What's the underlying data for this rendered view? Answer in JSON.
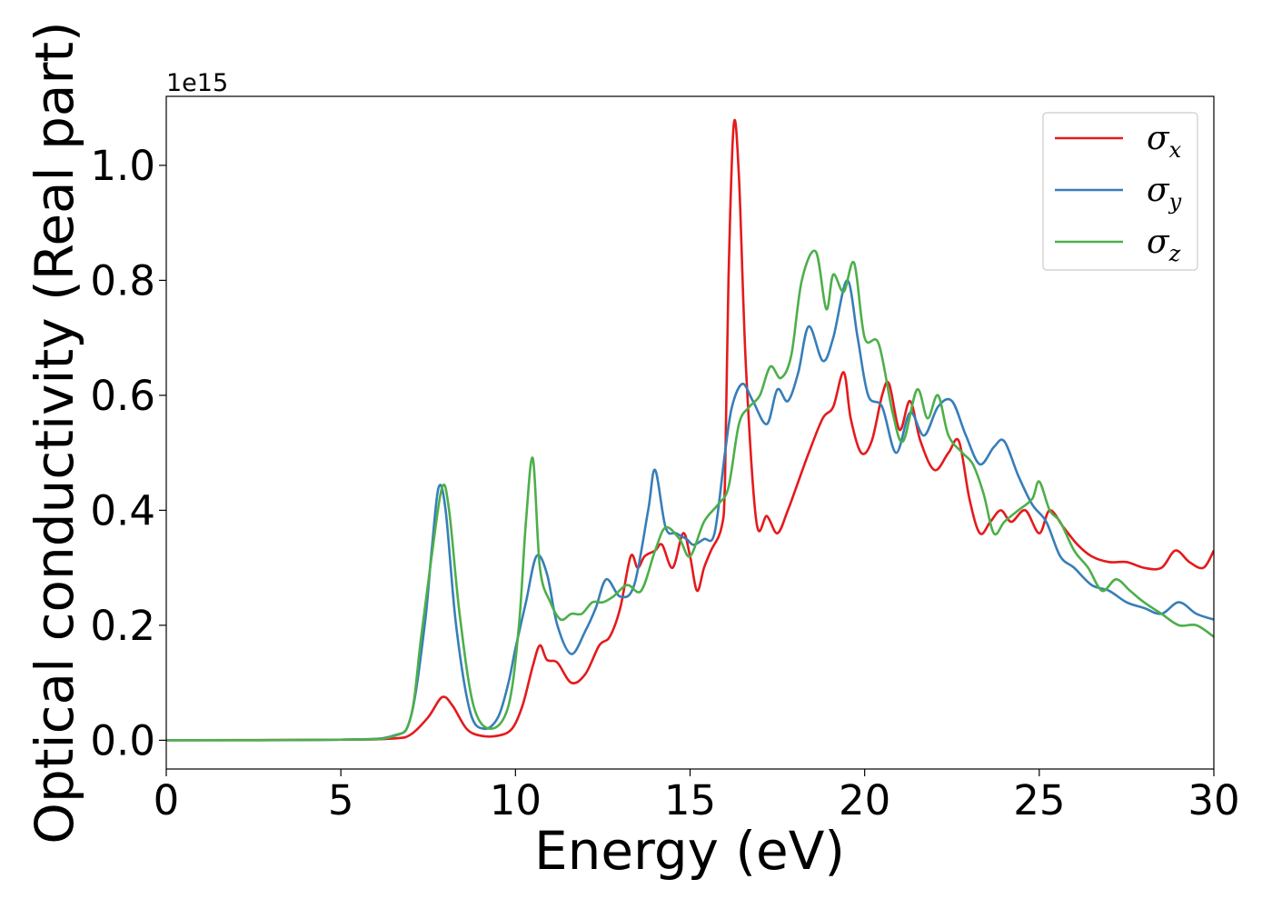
{
  "chart_data": {
    "type": "line",
    "xlabel": "Energy (eV)",
    "ylabel": "Optical conductivity (Real part)",
    "offset_text": "1e15",
    "xlim": [
      0,
      30
    ],
    "ylim": [
      -0.05,
      1.12
    ],
    "x_ticks": [
      0,
      5,
      10,
      15,
      20,
      25,
      30
    ],
    "x_tick_labels": [
      "0",
      "5",
      "10",
      "15",
      "20",
      "25",
      "30"
    ],
    "y_ticks": [
      0.0,
      0.2,
      0.4,
      0.6,
      0.8,
      1.0
    ],
    "y_tick_labels": [
      "0.0",
      "0.2",
      "0.4",
      "0.6",
      "0.8",
      "1.0"
    ],
    "grid": false,
    "legend_position": "upper-right",
    "series": [
      {
        "name": "σx",
        "legend_symbol": "σ",
        "legend_subscript": "x",
        "color": "#e41a1c",
        "points": [
          [
            0,
            0
          ],
          [
            5,
            0.001
          ],
          [
            6.5,
            0.003
          ],
          [
            7.0,
            0.01
          ],
          [
            7.5,
            0.04
          ],
          [
            7.9,
            0.075
          ],
          [
            8.2,
            0.06
          ],
          [
            8.6,
            0.02
          ],
          [
            9.0,
            0.008
          ],
          [
            9.5,
            0.008
          ],
          [
            9.9,
            0.02
          ],
          [
            10.2,
            0.06
          ],
          [
            10.5,
            0.13
          ],
          [
            10.7,
            0.165
          ],
          [
            10.9,
            0.14
          ],
          [
            11.2,
            0.135
          ],
          [
            11.6,
            0.1
          ],
          [
            12.0,
            0.115
          ],
          [
            12.4,
            0.165
          ],
          [
            12.7,
            0.18
          ],
          [
            13.0,
            0.23
          ],
          [
            13.3,
            0.32
          ],
          [
            13.5,
            0.3
          ],
          [
            13.7,
            0.32
          ],
          [
            14.0,
            0.33
          ],
          [
            14.2,
            0.34
          ],
          [
            14.5,
            0.3
          ],
          [
            14.8,
            0.36
          ],
          [
            15.0,
            0.32
          ],
          [
            15.2,
            0.26
          ],
          [
            15.4,
            0.3
          ],
          [
            15.6,
            0.33
          ],
          [
            15.9,
            0.37
          ],
          [
            16.0,
            0.45
          ],
          [
            16.1,
            0.8
          ],
          [
            16.25,
            1.07
          ],
          [
            16.4,
            0.98
          ],
          [
            16.6,
            0.65
          ],
          [
            16.9,
            0.38
          ],
          [
            17.2,
            0.39
          ],
          [
            17.5,
            0.36
          ],
          [
            17.8,
            0.4
          ],
          [
            18.1,
            0.45
          ],
          [
            18.4,
            0.5
          ],
          [
            18.8,
            0.56
          ],
          [
            19.1,
            0.58
          ],
          [
            19.4,
            0.64
          ],
          [
            19.6,
            0.56
          ],
          [
            19.9,
            0.5
          ],
          [
            20.2,
            0.52
          ],
          [
            20.5,
            0.6
          ],
          [
            20.7,
            0.62
          ],
          [
            21.0,
            0.54
          ],
          [
            21.3,
            0.59
          ],
          [
            21.6,
            0.52
          ],
          [
            22.0,
            0.47
          ],
          [
            22.4,
            0.5
          ],
          [
            22.7,
            0.52
          ],
          [
            23.0,
            0.42
          ],
          [
            23.3,
            0.36
          ],
          [
            23.6,
            0.38
          ],
          [
            23.9,
            0.4
          ],
          [
            24.2,
            0.38
          ],
          [
            24.6,
            0.4
          ],
          [
            25.0,
            0.36
          ],
          [
            25.3,
            0.4
          ],
          [
            25.7,
            0.37
          ],
          [
            26.1,
            0.34
          ],
          [
            26.5,
            0.32
          ],
          [
            27.0,
            0.31
          ],
          [
            27.5,
            0.31
          ],
          [
            28.0,
            0.3
          ],
          [
            28.5,
            0.3
          ],
          [
            28.9,
            0.33
          ],
          [
            29.3,
            0.31
          ],
          [
            29.7,
            0.3
          ],
          [
            30.0,
            0.33
          ]
        ]
      },
      {
        "name": "σy",
        "legend_symbol": "σ",
        "legend_subscript": "y",
        "color": "#377eb8",
        "points": [
          [
            0,
            0
          ],
          [
            5,
            0.001
          ],
          [
            6.5,
            0.008
          ],
          [
            7.0,
            0.04
          ],
          [
            7.4,
            0.2
          ],
          [
            7.6,
            0.33
          ],
          [
            7.8,
            0.44
          ],
          [
            8.0,
            0.4
          ],
          [
            8.3,
            0.2
          ],
          [
            8.7,
            0.05
          ],
          [
            9.1,
            0.02
          ],
          [
            9.5,
            0.04
          ],
          [
            9.8,
            0.1
          ],
          [
            10.0,
            0.16
          ],
          [
            10.3,
            0.24
          ],
          [
            10.6,
            0.32
          ],
          [
            10.9,
            0.29
          ],
          [
            11.2,
            0.2
          ],
          [
            11.6,
            0.15
          ],
          [
            12.0,
            0.19
          ],
          [
            12.3,
            0.23
          ],
          [
            12.6,
            0.28
          ],
          [
            13.0,
            0.25
          ],
          [
            13.4,
            0.27
          ],
          [
            13.8,
            0.4
          ],
          [
            14.0,
            0.47
          ],
          [
            14.3,
            0.37
          ],
          [
            14.6,
            0.36
          ],
          [
            14.9,
            0.35
          ],
          [
            15.1,
            0.34
          ],
          [
            15.4,
            0.35
          ],
          [
            15.7,
            0.36
          ],
          [
            16.0,
            0.5
          ],
          [
            16.2,
            0.58
          ],
          [
            16.5,
            0.62
          ],
          [
            16.8,
            0.59
          ],
          [
            17.2,
            0.55
          ],
          [
            17.5,
            0.61
          ],
          [
            17.8,
            0.59
          ],
          [
            18.1,
            0.64
          ],
          [
            18.4,
            0.72
          ],
          [
            18.8,
            0.66
          ],
          [
            19.1,
            0.7
          ],
          [
            19.5,
            0.8
          ],
          [
            19.8,
            0.7
          ],
          [
            20.1,
            0.6
          ],
          [
            20.5,
            0.58
          ],
          [
            20.9,
            0.5
          ],
          [
            21.3,
            0.57
          ],
          [
            21.7,
            0.53
          ],
          [
            22.1,
            0.58
          ],
          [
            22.5,
            0.59
          ],
          [
            22.9,
            0.53
          ],
          [
            23.3,
            0.48
          ],
          [
            23.7,
            0.51
          ],
          [
            24.0,
            0.52
          ],
          [
            24.4,
            0.46
          ],
          [
            24.8,
            0.41
          ],
          [
            25.2,
            0.38
          ],
          [
            25.6,
            0.32
          ],
          [
            26.0,
            0.3
          ],
          [
            26.5,
            0.27
          ],
          [
            27.0,
            0.26
          ],
          [
            27.5,
            0.24
          ],
          [
            28.0,
            0.23
          ],
          [
            28.5,
            0.22
          ],
          [
            29.0,
            0.24
          ],
          [
            29.5,
            0.22
          ],
          [
            30.0,
            0.21
          ]
        ]
      },
      {
        "name": "σz",
        "legend_symbol": "σ",
        "legend_subscript": "z",
        "color": "#4daf4a",
        "points": [
          [
            0,
            0
          ],
          [
            5,
            0.001
          ],
          [
            6.5,
            0.007
          ],
          [
            7.0,
            0.04
          ],
          [
            7.3,
            0.18
          ],
          [
            7.6,
            0.32
          ],
          [
            7.9,
            0.44
          ],
          [
            8.1,
            0.4
          ],
          [
            8.4,
            0.22
          ],
          [
            8.8,
            0.06
          ],
          [
            9.3,
            0.02
          ],
          [
            9.8,
            0.06
          ],
          [
            10.1,
            0.2
          ],
          [
            10.3,
            0.38
          ],
          [
            10.5,
            0.49
          ],
          [
            10.7,
            0.3
          ],
          [
            11.0,
            0.24
          ],
          [
            11.3,
            0.21
          ],
          [
            11.6,
            0.22
          ],
          [
            11.9,
            0.22
          ],
          [
            12.2,
            0.24
          ],
          [
            12.5,
            0.24
          ],
          [
            12.8,
            0.25
          ],
          [
            13.2,
            0.27
          ],
          [
            13.6,
            0.26
          ],
          [
            14.0,
            0.33
          ],
          [
            14.3,
            0.37
          ],
          [
            14.7,
            0.35
          ],
          [
            15.0,
            0.32
          ],
          [
            15.4,
            0.38
          ],
          [
            15.8,
            0.41
          ],
          [
            16.1,
            0.44
          ],
          [
            16.4,
            0.55
          ],
          [
            16.7,
            0.58
          ],
          [
            17.0,
            0.6
          ],
          [
            17.3,
            0.65
          ],
          [
            17.6,
            0.63
          ],
          [
            17.9,
            0.67
          ],
          [
            18.2,
            0.8
          ],
          [
            18.6,
            0.85
          ],
          [
            18.9,
            0.75
          ],
          [
            19.1,
            0.81
          ],
          [
            19.4,
            0.78
          ],
          [
            19.7,
            0.83
          ],
          [
            20.0,
            0.7
          ],
          [
            20.4,
            0.69
          ],
          [
            20.8,
            0.57
          ],
          [
            21.1,
            0.52
          ],
          [
            21.5,
            0.61
          ],
          [
            21.8,
            0.56
          ],
          [
            22.1,
            0.6
          ],
          [
            22.4,
            0.53
          ],
          [
            22.8,
            0.5
          ],
          [
            23.1,
            0.48
          ],
          [
            23.4,
            0.43
          ],
          [
            23.7,
            0.36
          ],
          [
            24.0,
            0.38
          ],
          [
            24.4,
            0.4
          ],
          [
            24.8,
            0.42
          ],
          [
            25.0,
            0.45
          ],
          [
            25.3,
            0.4
          ],
          [
            25.6,
            0.38
          ],
          [
            26.0,
            0.33
          ],
          [
            26.4,
            0.3
          ],
          [
            26.8,
            0.26
          ],
          [
            27.2,
            0.28
          ],
          [
            27.6,
            0.26
          ],
          [
            28.0,
            0.24
          ],
          [
            28.5,
            0.22
          ],
          [
            29.0,
            0.2
          ],
          [
            29.5,
            0.2
          ],
          [
            30.0,
            0.18
          ]
        ]
      }
    ]
  }
}
